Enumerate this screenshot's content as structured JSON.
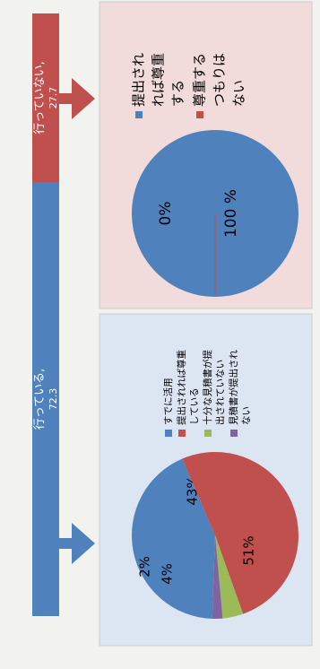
{
  "chart_data": [
    {
      "type": "bar",
      "orientation": "stacked-single",
      "categories": [
        "行っている",
        "行っていない"
      ],
      "values": [
        72.3,
        27.7
      ],
      "labels": [
        {
          "name": "行っている,",
          "value": "72.3"
        },
        {
          "name": "行っていない,",
          "value": "27.7"
        }
      ],
      "colors": [
        "#4f81bd",
        "#c0504d"
      ]
    },
    {
      "type": "pie",
      "categories": [
        "すでに活用",
        "提出されれば尊重している",
        "十分な見積書が提出されていない",
        "見積書が提出されない"
      ],
      "values": [
        43,
        51,
        4,
        2
      ],
      "data_labels": [
        "43%",
        "51%",
        "4%",
        "2%"
      ],
      "legend_lines": [
        [
          "すでに活用"
        ],
        [
          "提出されれば尊重",
          "している"
        ],
        [
          "十分な見積書が提",
          "出されていない"
        ],
        [
          "見積書が提出され",
          "ない"
        ]
      ],
      "colors": [
        "#4f81bd",
        "#c0504d",
        "#9bbb59",
        "#8064a2"
      ],
      "legend_position": "right"
    },
    {
      "type": "pie",
      "categories": [
        "提出されれば尊重する",
        "尊重するつもりはない"
      ],
      "values": [
        100,
        0
      ],
      "data_labels": [
        "100 %",
        "0%"
      ],
      "legend_lines": [
        [
          "提出され",
          "れば尊重",
          "する"
        ],
        [
          "尊重する",
          "つもりは",
          "ない"
        ]
      ],
      "colors": [
        "#4f81bd",
        "#c0504d"
      ],
      "legend_position": "right"
    }
  ]
}
